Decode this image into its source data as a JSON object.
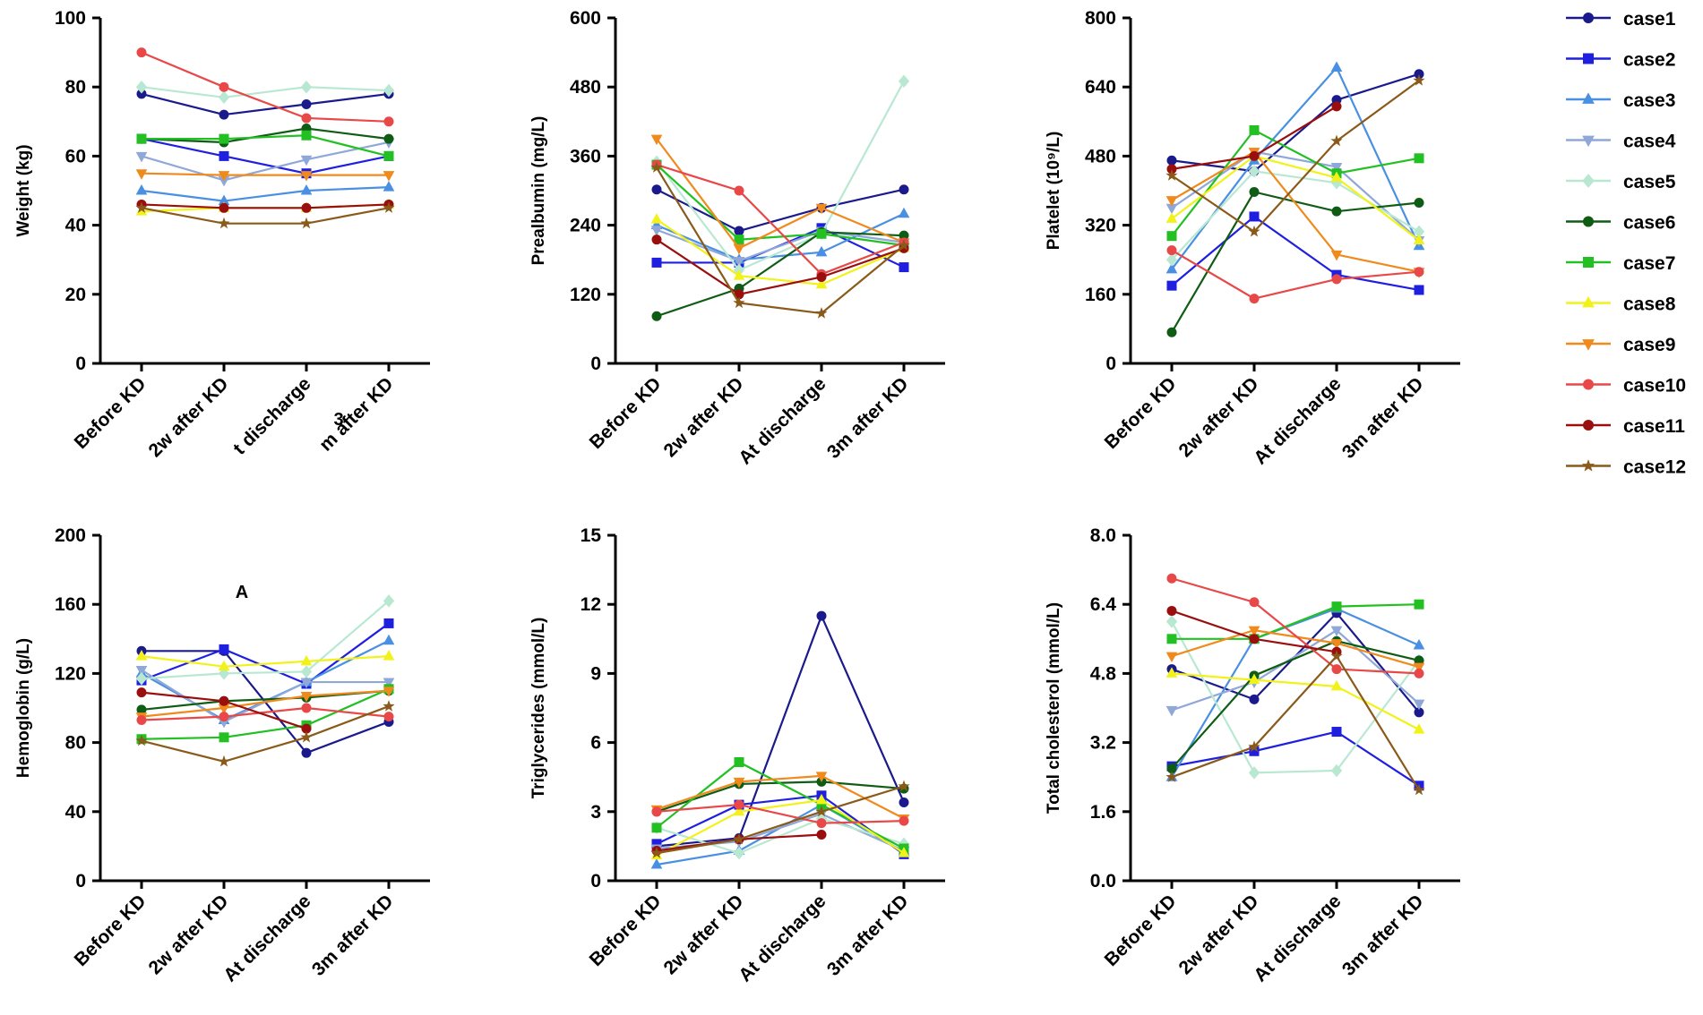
{
  "legend": [
    {
      "name": "case1",
      "color": "#1a1a8c",
      "marker": "circle"
    },
    {
      "name": "case2",
      "color": "#1f1fe0",
      "marker": "square"
    },
    {
      "name": "case3",
      "color": "#4a90e2",
      "marker": "triangle"
    },
    {
      "name": "case4",
      "color": "#8fa8d8",
      "marker": "triangle-down"
    },
    {
      "name": "case5",
      "color": "#b9e8d2",
      "marker": "diamond"
    },
    {
      "name": "case6",
      "color": "#0f5c14",
      "marker": "circle"
    },
    {
      "name": "case7",
      "color": "#22c022",
      "marker": "square"
    },
    {
      "name": "case8",
      "color": "#f2f21a",
      "marker": "triangle"
    },
    {
      "name": "case9",
      "color": "#f08a1c",
      "marker": "triangle-down"
    },
    {
      "name": "case10",
      "color": "#e84848",
      "marker": "circle"
    },
    {
      "name": "case11",
      "color": "#9b0e0e",
      "marker": "circle"
    },
    {
      "name": "case12",
      "color": "#8a5a1a",
      "marker": "star"
    }
  ],
  "chart_data": [
    {
      "type": "line",
      "ylabel": "Weight (kg)",
      "ylim": [
        0,
        100
      ],
      "yticks": [
        "0",
        "20",
        "40",
        "60",
        "80",
        "100"
      ],
      "categories": [
        "Before KD",
        "2w after KD",
        "t discharge",
        "m after KD"
      ],
      "annotations": [
        "3"
      ],
      "series": [
        {
          "name": "case1",
          "values": [
            78,
            72,
            75,
            78
          ]
        },
        {
          "name": "case2",
          "values": [
            65,
            60,
            55,
            60
          ]
        },
        {
          "name": "case3",
          "values": [
            50,
            47,
            50,
            51
          ]
        },
        {
          "name": "case4",
          "values": [
            60,
            53,
            59,
            64
          ]
        },
        {
          "name": "case5",
          "values": [
            80,
            77,
            80,
            79
          ]
        },
        {
          "name": "case6",
          "values": [
            65,
            64,
            68,
            65
          ]
        },
        {
          "name": "case7",
          "values": [
            65,
            65,
            66,
            60
          ]
        },
        {
          "name": "case8",
          "values": [
            44,
            45,
            45,
            46
          ]
        },
        {
          "name": "case9",
          "values": [
            55,
            54.5,
            54.5,
            54.5
          ]
        },
        {
          "name": "case10",
          "values": [
            90,
            80,
            71,
            70
          ]
        },
        {
          "name": "case11",
          "values": [
            46,
            45,
            45,
            46
          ]
        },
        {
          "name": "case12",
          "values": [
            45,
            40.5,
            40.5,
            45
          ]
        }
      ]
    },
    {
      "type": "line",
      "ylabel": "Prealbumin (mg/L)",
      "ylim": [
        0,
        600
      ],
      "yticks": [
        "0",
        "120",
        "240",
        "360",
        "480",
        "600"
      ],
      "categories": [
        "Before KD",
        "2w after KD",
        "At discharge",
        "3m after KD"
      ],
      "annotations": [],
      "series": [
        {
          "name": "case1",
          "values": [
            302,
            230,
            270,
            302
          ]
        },
        {
          "name": "case2",
          "values": [
            175,
            175,
            235,
            167
          ]
        },
        {
          "name": "case3",
          "values": [
            240,
            180,
            193,
            260
          ]
        },
        {
          "name": "case4",
          "values": [
            232,
            178,
            230,
            210
          ]
        },
        {
          "name": "case5",
          "values": [
            350,
            162,
            225,
            490
          ]
        },
        {
          "name": "case6",
          "values": [
            82,
            130,
            228,
            222
          ]
        },
        {
          "name": "case7",
          "values": [
            345,
            215,
            225,
            205
          ]
        },
        {
          "name": "case8",
          "values": [
            250,
            152,
            137,
            200
          ]
        },
        {
          "name": "case9",
          "values": [
            390,
            200,
            270,
            210
          ]
        },
        {
          "name": "case10",
          "values": [
            345,
            300,
            155,
            210
          ]
        },
        {
          "name": "case11",
          "values": [
            215,
            120,
            150,
            200
          ]
        },
        {
          "name": "case12",
          "values": [
            340,
            105,
            87,
            205
          ]
        }
      ]
    },
    {
      "type": "line",
      "ylabel": "Platelet (10⁹/L)",
      "ylim": [
        0,
        800
      ],
      "yticks": [
        "0",
        "160",
        "320",
        "480",
        "640",
        "800"
      ],
      "categories": [
        "Before KD",
        "2w after KD",
        "At discharge",
        "3m after KD"
      ],
      "annotations": [],
      "series": [
        {
          "name": "case1",
          "values": [
            470,
            445,
            610,
            670
          ]
        },
        {
          "name": "case2",
          "values": [
            180,
            340,
            205,
            170
          ]
        },
        {
          "name": "case3",
          "values": [
            218,
            470,
            685,
            272
          ]
        },
        {
          "name": "case4",
          "values": [
            360,
            490,
            455,
            285
          ]
        },
        {
          "name": "case5",
          "values": [
            240,
            445,
            418,
            305
          ]
        },
        {
          "name": "case6",
          "values": [
            72,
            397,
            352,
            372
          ]
        },
        {
          "name": "case7",
          "values": [
            295,
            540,
            440,
            475
          ]
        },
        {
          "name": "case8",
          "values": [
            335,
            480,
            430,
            285
          ]
        },
        {
          "name": "case9",
          "values": [
            378,
            490,
            252,
            212
          ]
        },
        {
          "name": "case10",
          "values": [
            262,
            150,
            195,
            212
          ]
        },
        {
          "name": "case11",
          "values": [
            450,
            480,
            595,
            null
          ]
        },
        {
          "name": "case12",
          "values": [
            435,
            305,
            515,
            655
          ]
        }
      ]
    },
    {
      "type": "line",
      "ylabel": "Hemoglobin (g/L)",
      "ylim": [
        0,
        200
      ],
      "yticks": [
        "0",
        "40",
        "80",
        "120",
        "160",
        "200"
      ],
      "categories": [
        "Before KD",
        "2w after KD",
        "At discharge",
        "3m after KD"
      ],
      "annotations": [
        "A"
      ],
      "series": [
        {
          "name": "case1",
          "values": [
            133,
            133,
            74,
            92
          ]
        },
        {
          "name": "case2",
          "values": [
            116,
            134,
            114,
            149
          ]
        },
        {
          "name": "case3",
          "values": [
            120,
            93,
            115,
            139
          ]
        },
        {
          "name": "case4",
          "values": [
            122,
            92,
            115,
            115
          ]
        },
        {
          "name": "case5",
          "values": [
            117,
            120,
            121,
            162
          ]
        },
        {
          "name": "case6",
          "values": [
            99,
            104,
            106,
            110
          ]
        },
        {
          "name": "case7",
          "values": [
            82,
            83,
            90,
            111
          ]
        },
        {
          "name": "case8",
          "values": [
            130,
            124,
            127,
            130
          ]
        },
        {
          "name": "case9",
          "values": [
            95,
            100,
            107,
            110
          ]
        },
        {
          "name": "case10",
          "values": [
            93,
            95,
            100,
            95
          ]
        },
        {
          "name": "case11",
          "values": [
            109,
            104,
            88,
            null
          ]
        },
        {
          "name": "case12",
          "values": [
            81,
            69,
            83,
            101
          ]
        }
      ]
    },
    {
      "type": "line",
      "ylabel": "Triglycerides (mmol/L)",
      "ylim": [
        0,
        15
      ],
      "yticks": [
        "0",
        "3",
        "6",
        "9",
        "12",
        "15"
      ],
      "categories": [
        "Before KD",
        "2w after KD",
        "At discharge",
        "3m after KD"
      ],
      "annotations": [],
      "series": [
        {
          "name": "case1",
          "values": [
            1.5,
            1.85,
            11.5,
            3.4
          ]
        },
        {
          "name": "case2",
          "values": [
            1.6,
            3.3,
            3.7,
            1.15
          ]
        },
        {
          "name": "case3",
          "values": [
            0.7,
            1.3,
            3.3,
            1.25
          ]
        },
        {
          "name": "case4",
          "values": [
            1.4,
            1.7,
            2.9,
            1.3
          ]
        },
        {
          "name": "case5",
          "values": [
            2.3,
            1.2,
            2.7,
            1.6
          ]
        },
        {
          "name": "case6",
          "values": [
            3.0,
            4.2,
            4.3,
            4.0
          ]
        },
        {
          "name": "case7",
          "values": [
            2.3,
            5.15,
            3.3,
            1.4
          ]
        },
        {
          "name": "case8",
          "values": [
            1.1,
            3.0,
            3.5,
            1.2
          ]
        },
        {
          "name": "case9",
          "values": [
            3.1,
            4.3,
            4.55,
            2.7
          ]
        },
        {
          "name": "case10",
          "values": [
            3.0,
            3.3,
            2.5,
            2.6
          ]
        },
        {
          "name": "case11",
          "values": [
            1.3,
            1.8,
            2.0,
            null
          ]
        },
        {
          "name": "case12",
          "values": [
            1.2,
            1.8,
            3.0,
            4.1
          ]
        }
      ]
    },
    {
      "type": "line",
      "ylabel": "Total cholesterol (mmol/L)",
      "ylim": [
        0,
        8
      ],
      "yticks": [
        "0.0",
        "1.6",
        "3.2",
        "4.8",
        "6.4",
        "8.0"
      ],
      "categories": [
        "Before KD",
        "2w after KD",
        "At discharge",
        "3m after KD"
      ],
      "annotations": [],
      "series": [
        {
          "name": "case1",
          "values": [
            4.9,
            4.2,
            6.2,
            3.9
          ]
        },
        {
          "name": "case2",
          "values": [
            2.65,
            3.0,
            3.45,
            2.2
          ]
        },
        {
          "name": "case3",
          "values": [
            2.4,
            5.6,
            6.3,
            5.45
          ]
        },
        {
          "name": "case4",
          "values": [
            3.95,
            4.6,
            5.8,
            4.1
          ]
        },
        {
          "name": "case5",
          "values": [
            6.0,
            2.5,
            2.55,
            5.1
          ]
        },
        {
          "name": "case6",
          "values": [
            2.6,
            4.75,
            5.55,
            5.1
          ]
        },
        {
          "name": "case7",
          "values": [
            5.6,
            5.6,
            6.35,
            6.4
          ]
        },
        {
          "name": "case8",
          "values": [
            4.8,
            4.65,
            4.5,
            3.5
          ]
        },
        {
          "name": "case9",
          "values": [
            5.2,
            5.8,
            5.5,
            4.95
          ]
        },
        {
          "name": "case10",
          "values": [
            7.0,
            6.45,
            4.9,
            4.8
          ]
        },
        {
          "name": "case11",
          "values": [
            6.25,
            5.6,
            5.3,
            null
          ]
        },
        {
          "name": "case12",
          "values": [
            2.4,
            3.1,
            5.2,
            2.1
          ]
        }
      ]
    }
  ]
}
